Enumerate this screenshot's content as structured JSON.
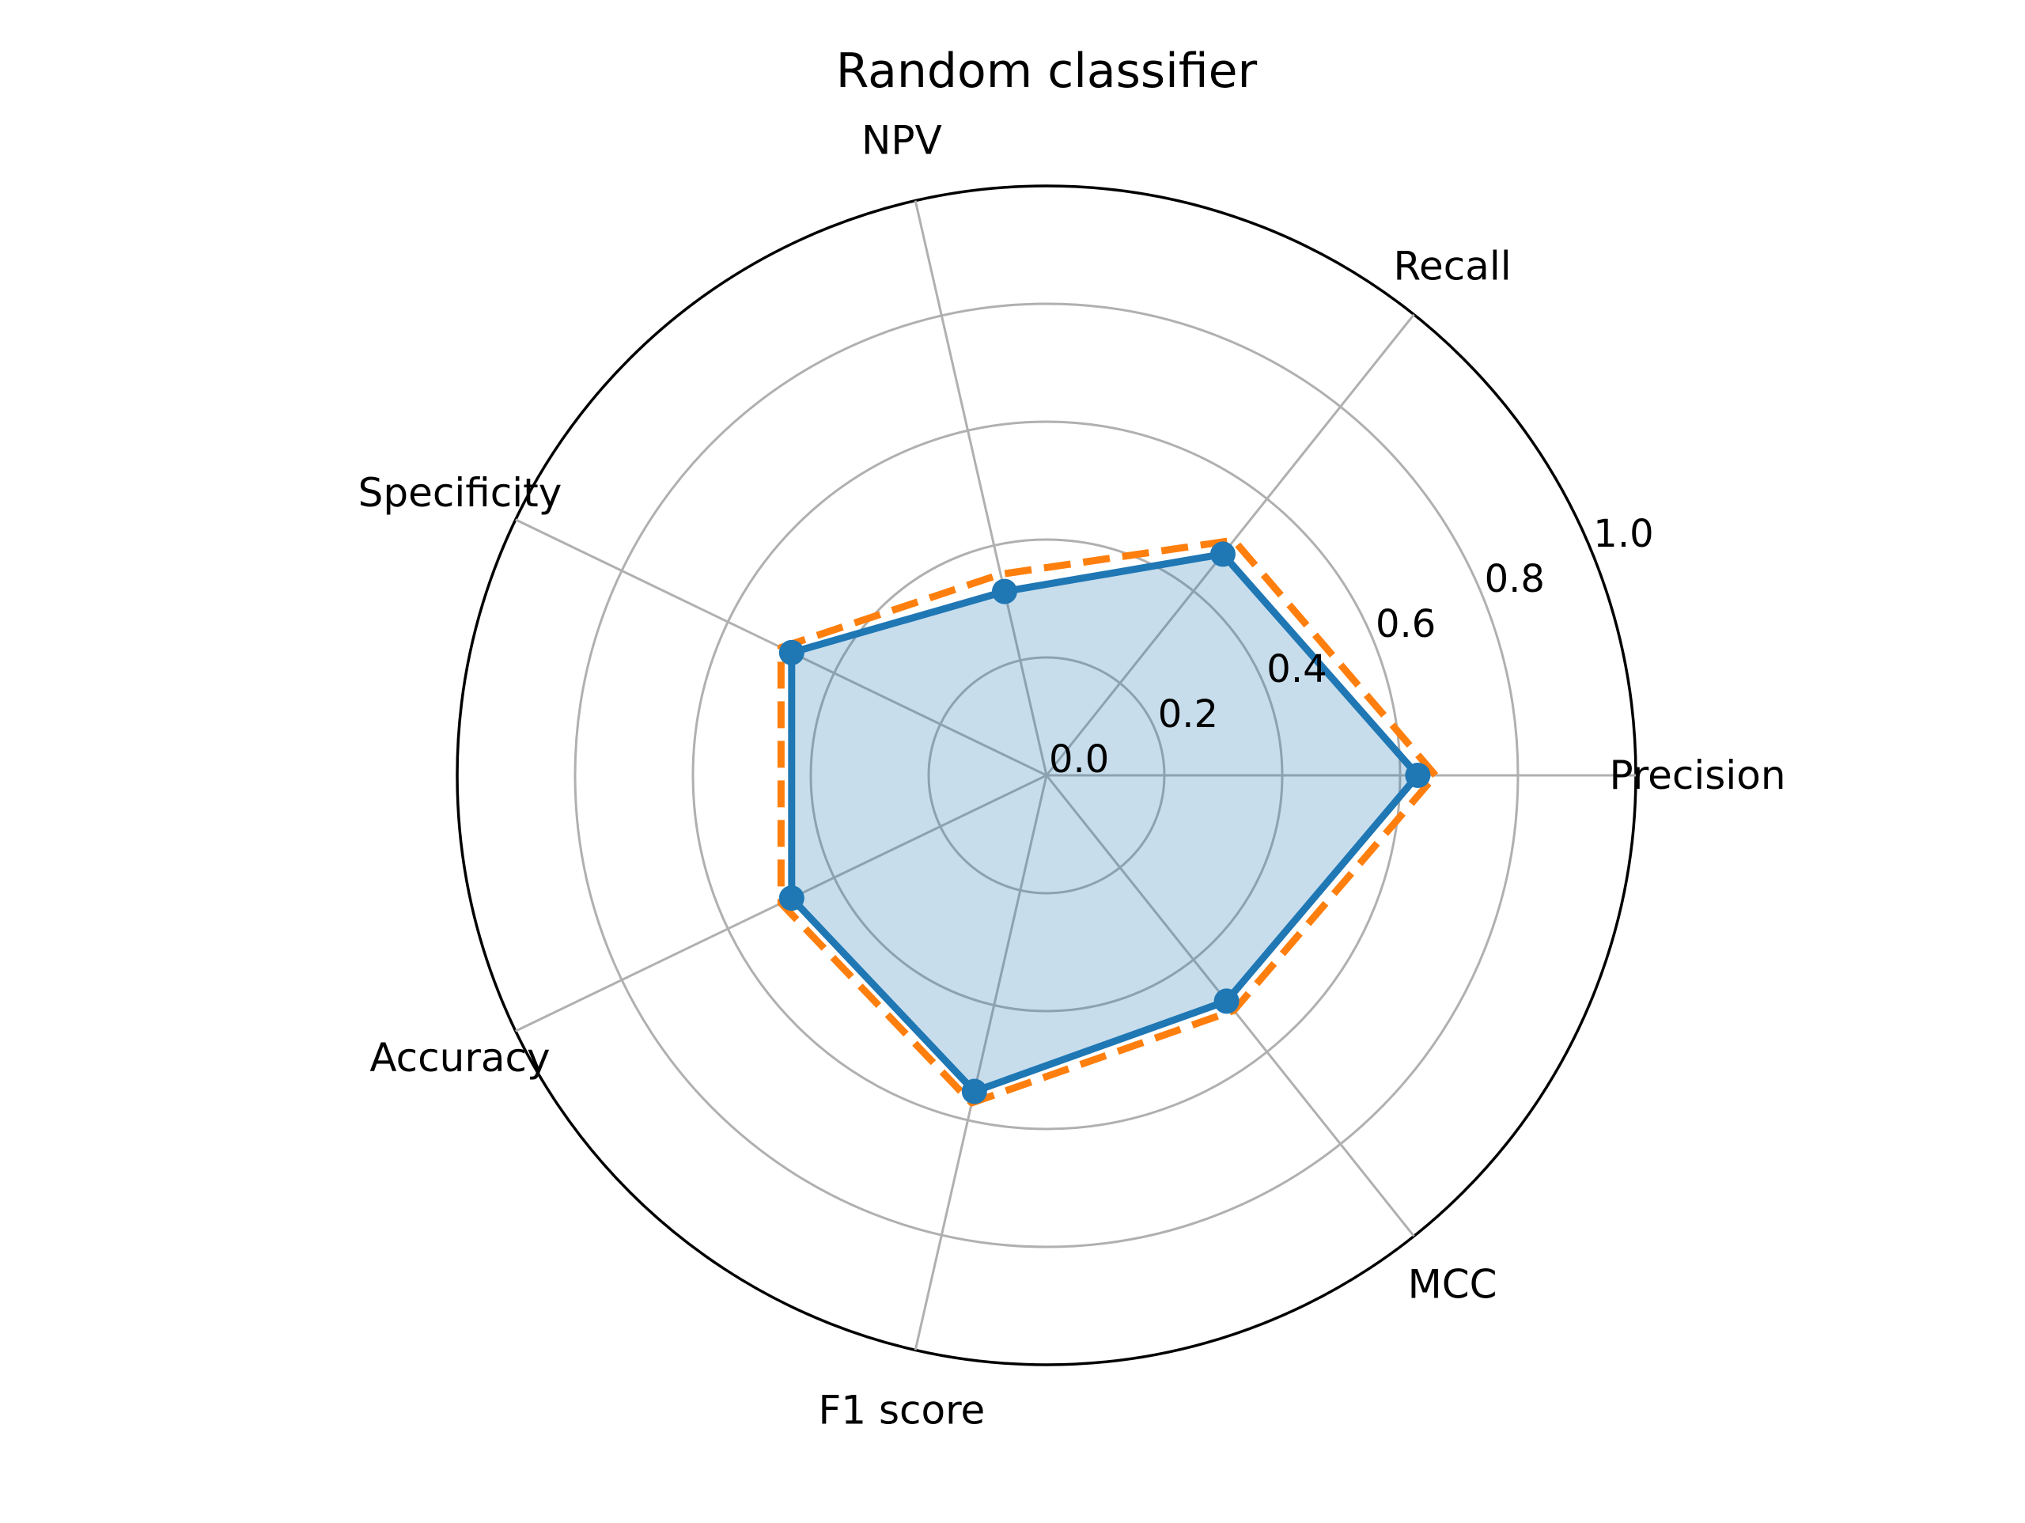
{
  "chart_data": {
    "type": "radar",
    "title": "Random classifier",
    "axes": [
      "Precision",
      "Recall",
      "NPV",
      "Specificity",
      "Accuracy",
      "F1 score",
      "MCC"
    ],
    "rticks": [
      "0.0",
      "0.2",
      "0.4",
      "0.6",
      "0.8",
      "1.0"
    ],
    "rlim": [
      0,
      1
    ],
    "grid": true,
    "series": [
      {
        "values": [
          0.63,
          0.48,
          0.32,
          0.48,
          0.48,
          0.55,
          0.49
        ],
        "color": "#1f77b4",
        "style": "solid",
        "markers": true,
        "fill": true
      },
      {
        "values": [
          0.66,
          0.51,
          0.35,
          0.5,
          0.5,
          0.57,
          0.51
        ],
        "color": "#ff7f0e",
        "style": "dashed",
        "markers": false,
        "fill": false
      }
    ]
  }
}
